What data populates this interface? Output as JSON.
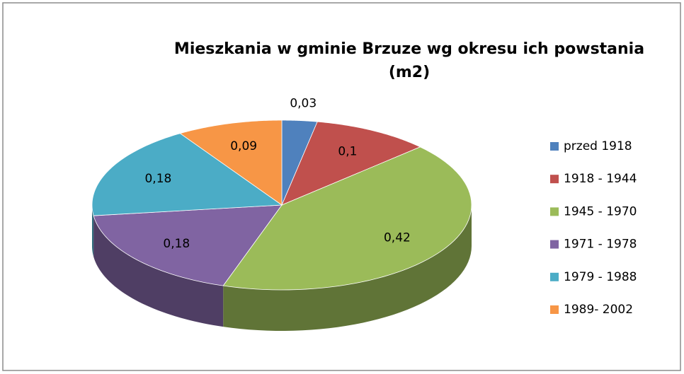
{
  "chart_data": {
    "type": "pie",
    "title": "Mieszkania w gminie Brzuze wg okresu ich powstania",
    "subtitle": "(m2)",
    "categories": [
      "przed 1918",
      "1918 - 1944",
      "1945 - 1970",
      "1971 - 1978",
      "1979 - 1988",
      "1989- 2002"
    ],
    "values": [
      0.03,
      0.1,
      0.42,
      0.18,
      0.18,
      0.09
    ],
    "value_labels": [
      "0,03",
      "0,1",
      "0,42",
      "0,18",
      "0,18",
      "0,09"
    ],
    "colors": [
      "#4f81bd",
      "#c0504d",
      "#9bbb59",
      "#8064a2",
      "#4bacc6",
      "#f79646"
    ],
    "legend": "right"
  }
}
